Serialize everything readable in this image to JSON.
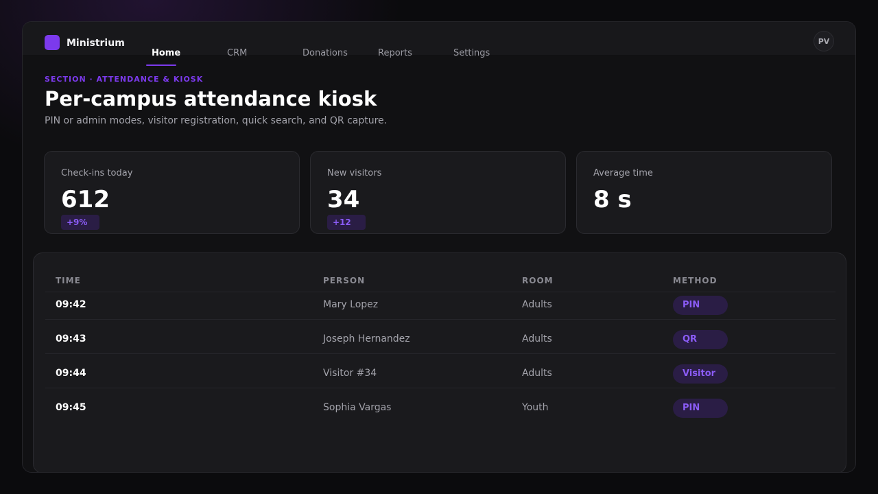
{
  "app": {
    "brand": "Ministrium"
  },
  "nav": {
    "tabs": [
      {
        "label": "Home",
        "active": true
      },
      {
        "label": "CRM",
        "active": false
      },
      {
        "label": "Donations",
        "active": false
      },
      {
        "label": "Reports",
        "active": false
      },
      {
        "label": "Settings",
        "active": false
      }
    ]
  },
  "user": {
    "initials": "PV"
  },
  "header": {
    "eyebrow": "SECTION · ATTENDANCE & KIOSK",
    "title": "Per-campus attendance kiosk",
    "subtitle": "PIN or admin modes, visitor registration, quick search, and QR capture."
  },
  "stats": [
    {
      "label": "Check-ins today",
      "value": "612",
      "delta": "+9%"
    },
    {
      "label": "New visitors",
      "value": "34",
      "delta": "+12"
    },
    {
      "label": "Average time",
      "value": "8 s"
    }
  ],
  "table": {
    "columns": [
      "TIME",
      "PERSON",
      "ROOM",
      "METHOD"
    ],
    "rows": [
      {
        "time": "09:42",
        "person": "Mary Lopez",
        "room": "Adults",
        "method": "PIN"
      },
      {
        "time": "09:43",
        "person": "Joseph Hernandez",
        "room": "Adults",
        "method": "QR"
      },
      {
        "time": "09:44",
        "person": "Visitor #34",
        "room": "Adults",
        "method": "Visitor"
      },
      {
        "time": "09:45",
        "person": "Sophia Vargas",
        "room": "Youth",
        "method": "PIN"
      }
    ]
  },
  "colors": {
    "accent": "#7c3aed",
    "badge_bg": "#2a1d45",
    "badge_text": "#8b5cf6",
    "background": "#0b0b0d",
    "surface": "#1a1a1d"
  },
  "icons": {
    "logo": "square-logo-icon"
  }
}
